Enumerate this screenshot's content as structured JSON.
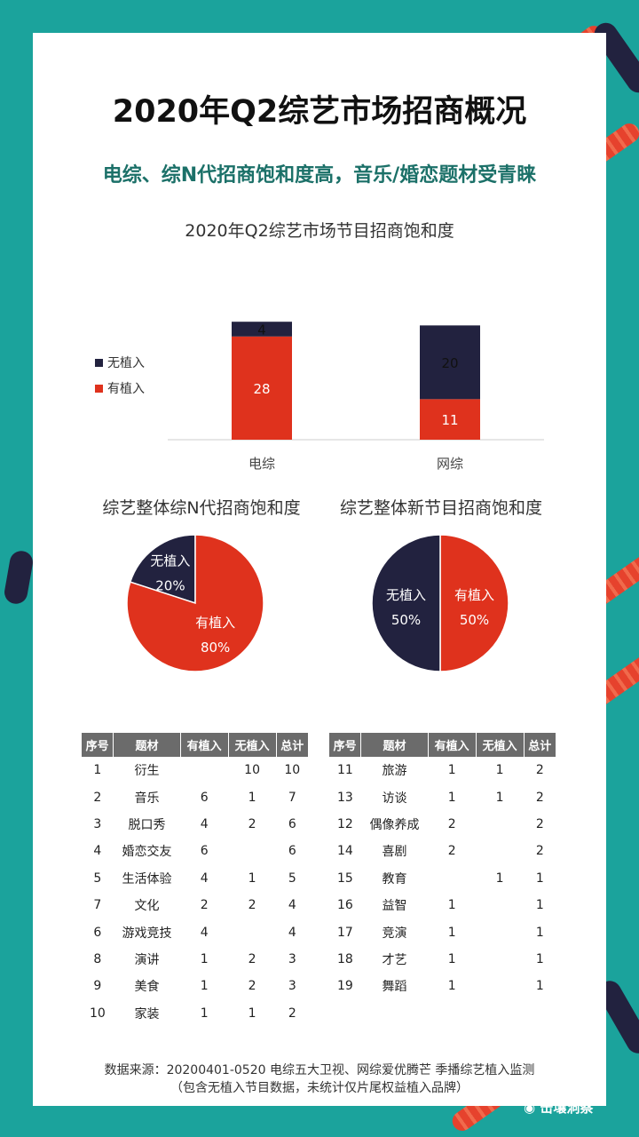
{
  "title": "2020年Q2综艺市场招商概况",
  "subtitle": "电综、综N代招商饱和度高，音乐/婚恋题材受青睐",
  "colors": {
    "has": "#df321d",
    "none": "#22223f",
    "header": "#6b6b6b",
    "accent": "#1b7068",
    "background": "#1ba39c"
  },
  "chart_data": [
    {
      "type": "bar",
      "title": "2020年Q2综艺市场节目招商饱和度",
      "stacked": true,
      "categories": [
        "电综",
        "网综"
      ],
      "series": [
        {
          "name": "有植入",
          "values": [
            28,
            11
          ]
        },
        {
          "name": "无植入",
          "values": [
            4,
            20
          ]
        }
      ],
      "legend_position": "left"
    },
    {
      "type": "pie",
      "title": "综艺整体综N代招商饱和度",
      "slices": [
        {
          "label": "无植入",
          "value": 20,
          "display": "20%"
        },
        {
          "label": "有植入",
          "value": 80,
          "display": "80%"
        }
      ]
    },
    {
      "type": "pie",
      "title": "综艺整体新节目招商饱和度",
      "slices": [
        {
          "label": "有植入",
          "value": 50,
          "display": "50%"
        },
        {
          "label": "无植入",
          "value": 50,
          "display": "50%"
        }
      ]
    }
  ],
  "table_headers": [
    "序号",
    "题材",
    "有植入",
    "无植入",
    "总计"
  ],
  "table_left": [
    [
      "1",
      "衍生",
      "",
      "10",
      "10"
    ],
    [
      "2",
      "音乐",
      "6",
      "1",
      "7"
    ],
    [
      "3",
      "脱口秀",
      "4",
      "2",
      "6"
    ],
    [
      "4",
      "婚恋交友",
      "6",
      "",
      "6"
    ],
    [
      "5",
      "生活体验",
      "4",
      "1",
      "5"
    ],
    [
      "7",
      "文化",
      "2",
      "2",
      "4"
    ],
    [
      "6",
      "游戏竞技",
      "4",
      "",
      "4"
    ],
    [
      "8",
      "演讲",
      "1",
      "2",
      "3"
    ],
    [
      "9",
      "美食",
      "1",
      "2",
      "3"
    ],
    [
      "10",
      "家装",
      "1",
      "1",
      "2"
    ]
  ],
  "table_right": [
    [
      "11",
      "旅游",
      "1",
      "1",
      "2"
    ],
    [
      "13",
      "访谈",
      "1",
      "1",
      "2"
    ],
    [
      "12",
      "偶像养成",
      "2",
      "",
      "2"
    ],
    [
      "14",
      "喜剧",
      "2",
      "",
      "2"
    ],
    [
      "15",
      "教育",
      "",
      "1",
      "1"
    ],
    [
      "16",
      "益智",
      "1",
      "",
      "1"
    ],
    [
      "17",
      "竞演",
      "1",
      "",
      "1"
    ],
    [
      "18",
      "才艺",
      "1",
      "",
      "1"
    ],
    [
      "19",
      "舞蹈",
      "1",
      "",
      "1"
    ]
  ],
  "source_line1": "数据来源：20200401-0520 电综五大卫视、网综爱优腾芒 季播综艺植入监测",
  "source_line2": "（包含无植入节目数据，未统计仅片尾权益植入品牌）",
  "watermark": "击壤洞察"
}
